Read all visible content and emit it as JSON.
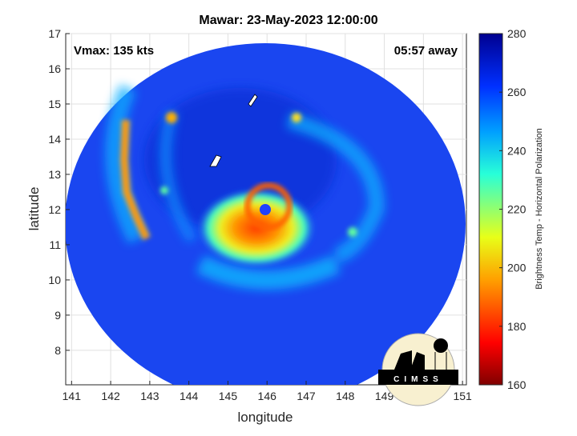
{
  "title": "Mawar: 23-May-2023 12:00:00",
  "vmax_label": "Vmax: 135 kts",
  "time_away_label": "05:57 away",
  "logo_text": "CIMSS",
  "chart_data": {
    "type": "heatmap",
    "title": "Mawar: 23-May-2023 12:00:00",
    "xlabel": "longitude",
    "ylabel": "latitude",
    "xlim": [
      140.85,
      151.1
    ],
    "ylim": [
      7.02,
      17
    ],
    "xticks": [
      "141",
      "142",
      "143",
      "144",
      "145",
      "146",
      "147",
      "148",
      "149",
      "150",
      "151"
    ],
    "yticks": [
      "8",
      "9",
      "10",
      "11",
      "12",
      "13",
      "14",
      "15",
      "16",
      "17"
    ],
    "grid": true,
    "storm_center": {
      "lon": 146.0,
      "lat": 12.0
    },
    "colorbar": {
      "label": "Brightness Temp - Horizontal Polarization",
      "range": [
        160,
        280
      ],
      "ticks": [
        "160",
        "180",
        "200",
        "220",
        "240",
        "260",
        "280"
      ],
      "colors": [
        "#800000",
        "#ff0000",
        "#ffa000",
        "#d8ff28",
        "#28ffd8",
        "#0050ff",
        "#000090"
      ]
    }
  }
}
